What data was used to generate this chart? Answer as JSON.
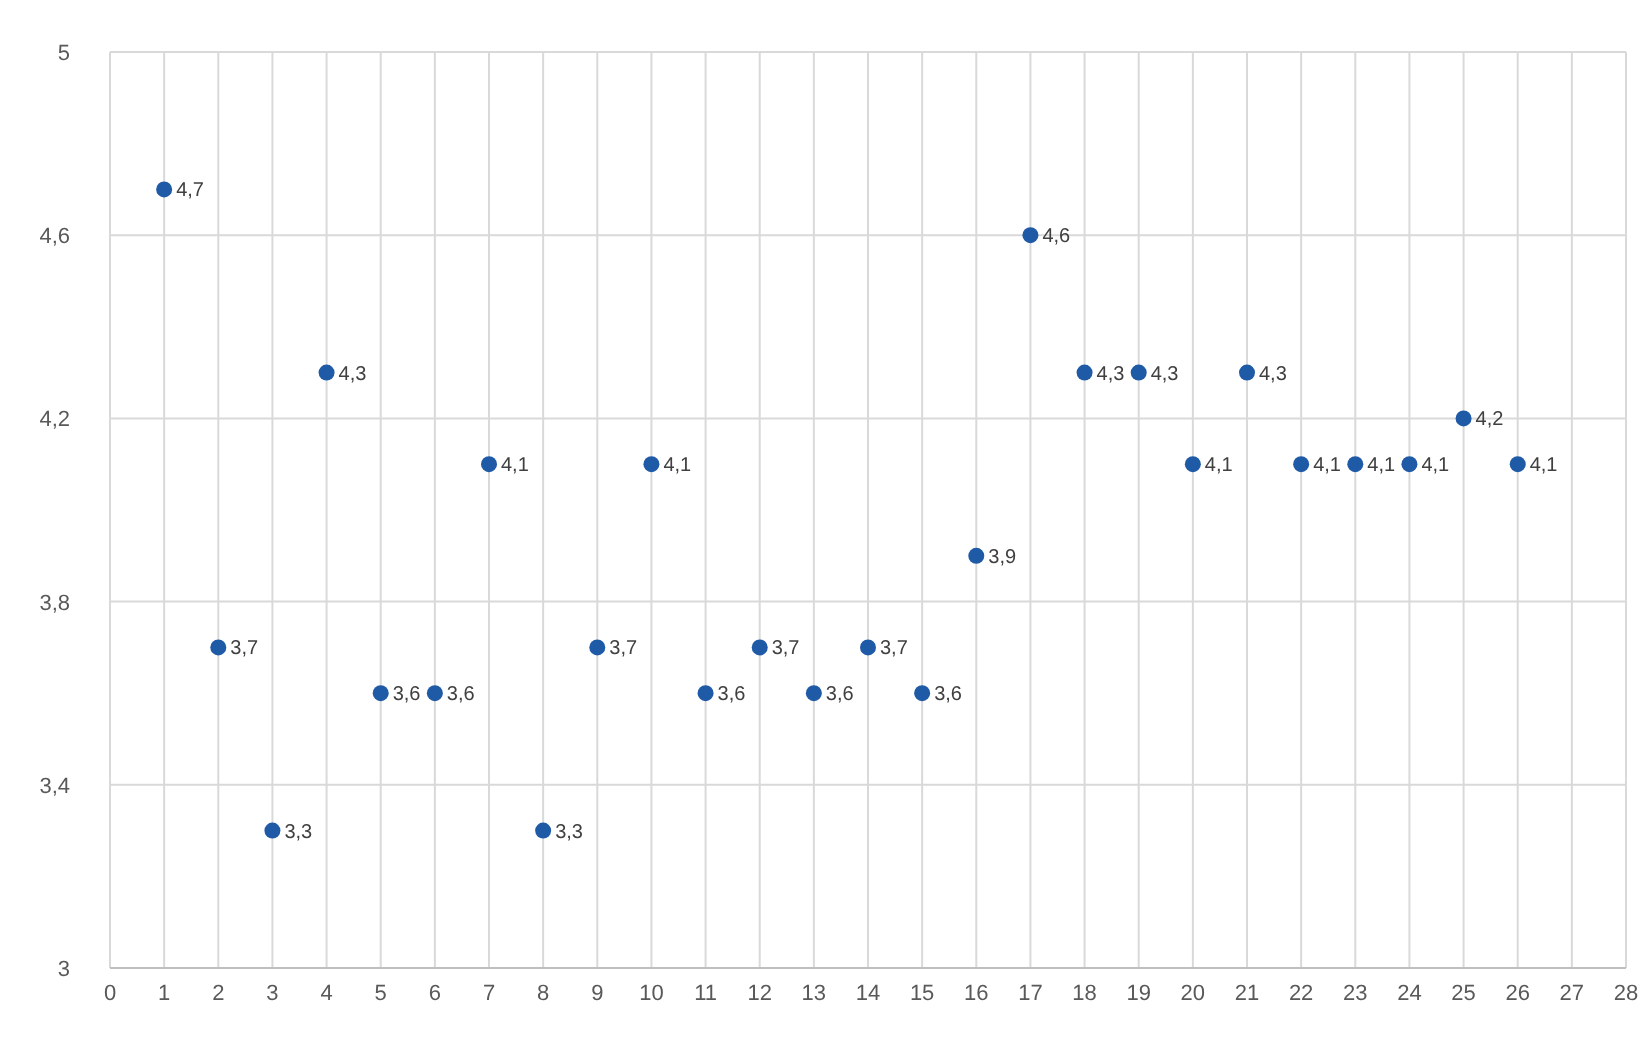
{
  "chart_data": {
    "type": "scatter",
    "x": [
      1,
      2,
      3,
      4,
      5,
      6,
      7,
      8,
      9,
      10,
      11,
      12,
      13,
      14,
      15,
      16,
      17,
      18,
      19,
      20,
      21,
      22,
      23,
      24,
      25,
      26
    ],
    "values": [
      4.7,
      3.7,
      3.3,
      4.3,
      3.6,
      3.6,
      4.1,
      3.3,
      3.7,
      4.1,
      3.6,
      3.7,
      3.6,
      3.7,
      3.6,
      3.9,
      4.6,
      4.3,
      4.3,
      4.1,
      4.3,
      4.1,
      4.1,
      4.1,
      4.2,
      4.1
    ],
    "value_labels": [
      "4,7",
      "3,7",
      "3,3",
      "4,3",
      "3,6",
      "3,6",
      "4,1",
      "3,3",
      "3,7",
      "4,1",
      "3,6",
      "3,7",
      "3,6",
      "3,7",
      "3,6",
      "3,9",
      "4,6",
      "4,3",
      "4,3",
      "4,1",
      "4,3",
      "4,1",
      "4,1",
      "4,1",
      "4,2",
      "4,1"
    ],
    "color": "#1f5aa6",
    "marker": "circle",
    "xlim": [
      0,
      28
    ],
    "xticks": [
      0,
      1,
      2,
      3,
      4,
      5,
      6,
      7,
      8,
      9,
      10,
      11,
      12,
      13,
      14,
      15,
      16,
      17,
      18,
      19,
      20,
      21,
      22,
      23,
      24,
      25,
      26,
      27,
      28
    ],
    "ylim": [
      3,
      5
    ],
    "yticks": [
      3,
      {
        "value": 3.4,
        "label": "3,4"
      },
      {
        "value": 3.8,
        "label": "3,8"
      },
      {
        "value": 4.2,
        "label": "4,2"
      },
      {
        "value": 4.6,
        "label": "4,6"
      },
      5
    ],
    "grid": true
  }
}
